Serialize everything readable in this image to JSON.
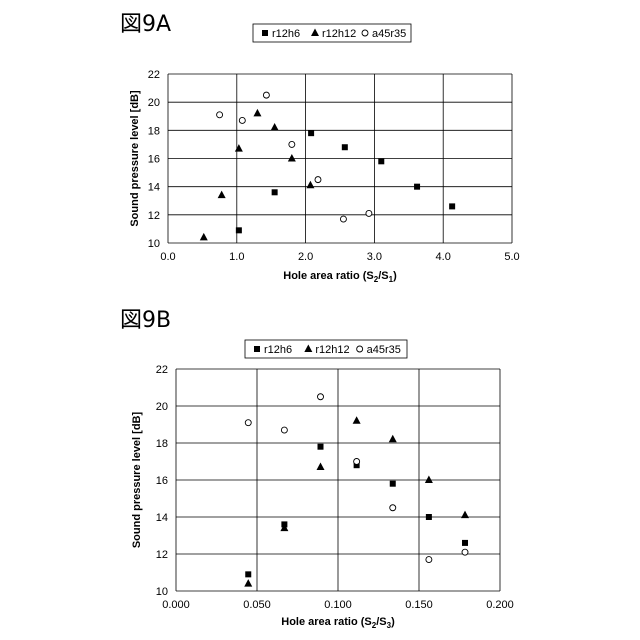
{
  "chart_data": [
    {
      "type": "scatter",
      "figure_label": "図9A",
      "xlabel": {
        "main": "Hole area ratio (S",
        "sub1": "2",
        "mid": "/S",
        "sub2": "1",
        "end": ")"
      },
      "ylabel": "Sound pressure level [dB]",
      "xlim": [
        0,
        5
      ],
      "ylim": [
        10,
        22
      ],
      "x_ticks": [
        0,
        1,
        2,
        3,
        4,
        5
      ],
      "x_tick_labels": [
        "0.0",
        "1.0",
        "2.0",
        "3.0",
        "4.0",
        "5.0"
      ],
      "y_ticks": [
        10,
        12,
        14,
        16,
        18,
        20,
        22
      ],
      "y_tick_labels": [
        "10",
        "12",
        "14",
        "16",
        "18",
        "20",
        "22"
      ],
      "grid": "vertical-and-horizontal",
      "legend_position": "top",
      "series": [
        {
          "name": "r12h6",
          "marker": "square",
          "x": [
            1.03,
            1.55,
            2.08,
            2.57,
            3.1,
            3.62,
            4.13
          ],
          "y": [
            10.9,
            13.6,
            17.8,
            16.8,
            15.8,
            14.0,
            12.6
          ]
        },
        {
          "name": "r12h12",
          "marker": "triangle",
          "x": [
            0.52,
            0.78,
            1.03,
            1.3,
            1.55,
            1.8,
            2.07
          ],
          "y": [
            10.4,
            13.4,
            16.7,
            19.2,
            18.2,
            16.0,
            14.1
          ]
        },
        {
          "name": "a45r35",
          "marker": "circle",
          "x": [
            0.75,
            1.08,
            1.43,
            1.8,
            2.18,
            2.55,
            2.92
          ],
          "y": [
            19.1,
            18.7,
            20.5,
            17.0,
            14.5,
            11.7,
            12.1
          ]
        }
      ]
    },
    {
      "type": "scatter",
      "figure_label": "図9B",
      "xlabel": {
        "main": "Hole area ratio (S",
        "sub1": "2",
        "mid": "/S",
        "sub2": "3",
        "end": ")"
      },
      "ylabel": "Sound pressure level [dB]",
      "xlim": [
        0,
        0.2
      ],
      "ylim": [
        10,
        22
      ],
      "x_ticks": [
        0,
        0.05,
        0.1,
        0.15,
        0.2
      ],
      "x_tick_labels": [
        "0.000",
        "0.050",
        "0.100",
        "0.150",
        "0.200"
      ],
      "y_ticks": [
        10,
        12,
        14,
        16,
        18,
        20,
        22
      ],
      "y_tick_labels": [
        "10",
        "12",
        "14",
        "16",
        "18",
        "20",
        "22"
      ],
      "grid": "vertical-and-horizontal",
      "legend_position": "top",
      "series": [
        {
          "name": "r12h6",
          "marker": "square",
          "x": [
            0.0446,
            0.0669,
            0.0892,
            0.1115,
            0.1338,
            0.1561,
            0.1784
          ],
          "y": [
            10.9,
            13.6,
            17.8,
            16.8,
            15.8,
            14.0,
            12.6
          ]
        },
        {
          "name": "r12h12",
          "marker": "triangle",
          "x": [
            0.0446,
            0.0669,
            0.0892,
            0.1115,
            0.1338,
            0.1561,
            0.1784
          ],
          "y": [
            10.4,
            13.4,
            16.7,
            19.2,
            18.2,
            16.0,
            14.1
          ]
        },
        {
          "name": "a45r35",
          "marker": "circle",
          "x": [
            0.0446,
            0.0669,
            0.0892,
            0.1115,
            0.1338,
            0.1561,
            0.1784
          ],
          "y": [
            19.1,
            18.7,
            20.5,
            17.0,
            14.5,
            11.7,
            12.1
          ]
        }
      ]
    }
  ]
}
